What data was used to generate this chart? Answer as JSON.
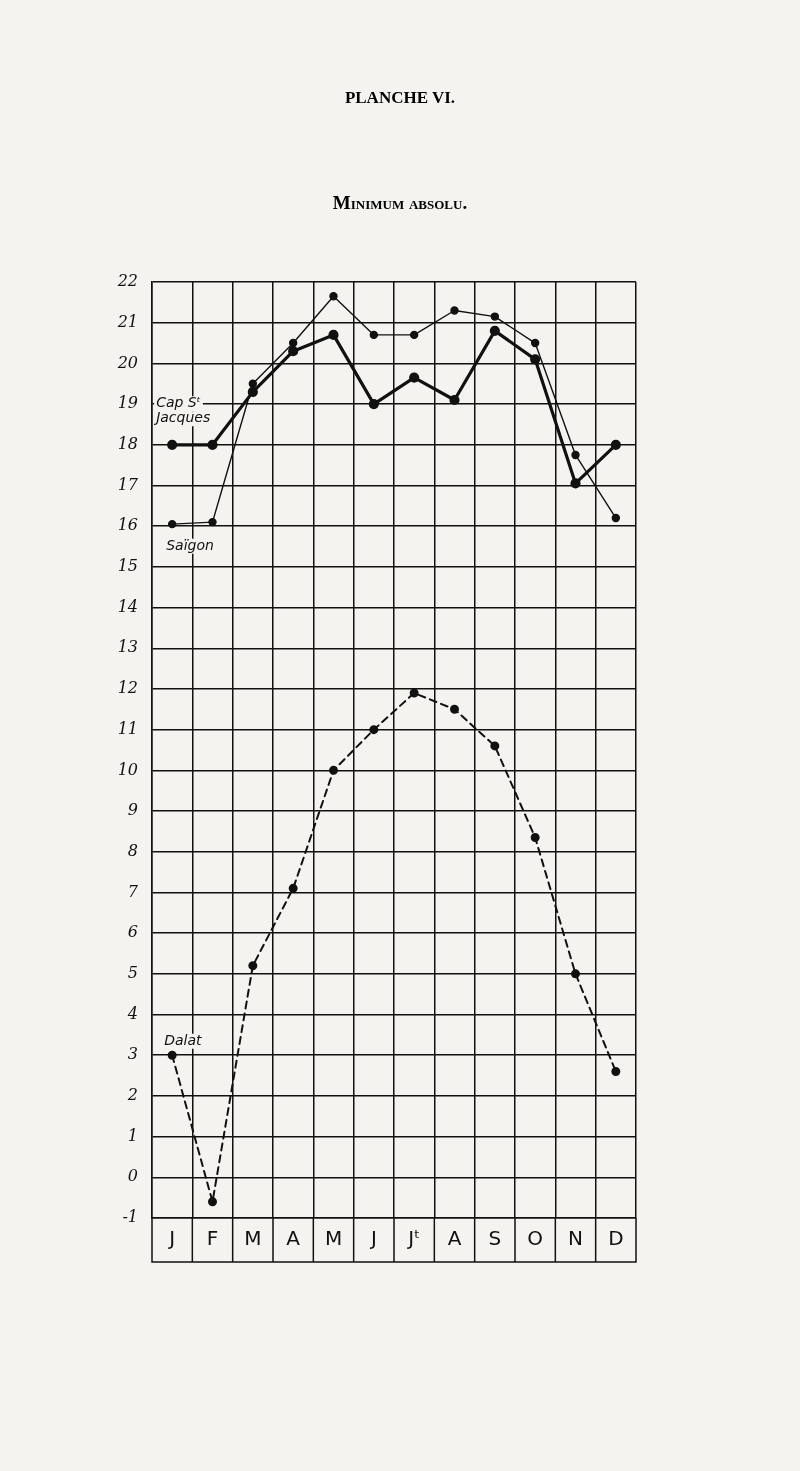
{
  "chart_data": {
    "type": "line",
    "title": "PLANCHE VI.",
    "subtitle": "Minimum absolu.",
    "categories": [
      "J",
      "F",
      "M",
      "A",
      "M",
      "J",
      "Jᵗ",
      "A",
      "S",
      "O",
      "N",
      "D"
    ],
    "series": [
      {
        "name": "Cap Sᵗ Jacques",
        "color": "#111111",
        "values": [
          18.0,
          18.0,
          19.3,
          20.3,
          20.7,
          19.0,
          19.65,
          19.1,
          20.8,
          20.1,
          17.05,
          18.0
        ]
      },
      {
        "name": "Saïgon",
        "color": "#111111",
        "values": [
          16.05,
          16.1,
          19.5,
          20.5,
          21.65,
          20.7,
          20.7,
          21.3,
          21.15,
          20.5,
          17.75,
          16.2
        ]
      },
      {
        "name": "Dalat",
        "color": "#111111",
        "line_style": "dashed",
        "values": [
          3.0,
          -0.6,
          5.2,
          7.1,
          10.0,
          11.0,
          11.9,
          11.5,
          10.6,
          8.35,
          5.0,
          2.6
        ]
      }
    ],
    "ylim": [
      -1,
      22
    ],
    "yticks": [
      -1,
      0,
      1,
      2,
      3,
      4,
      5,
      6,
      7,
      8,
      9,
      10,
      11,
      12,
      13,
      14,
      15,
      16,
      17,
      18,
      19,
      20,
      21,
      22
    ],
    "grid": true,
    "legend": false,
    "marker": "circle",
    "line_style": "solid"
  }
}
